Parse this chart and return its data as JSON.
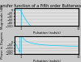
{
  "title": "Transfer function of a Fifth order Butterworth filter",
  "fig_bg": "#c8c8c8",
  "ax_bg": "#e0e0e0",
  "line_color": "#00ccff",
  "grid_color": "#aaaaaa",
  "freq_range": [
    0,
    10
  ],
  "mag_ylim": [
    -100,
    10
  ],
  "mag_yticks": [
    -100,
    -80,
    -60,
    -40,
    -20,
    0
  ],
  "mag_ylabel": "Magnitude (dB)",
  "phase_ylim": [
    -200,
    100
  ],
  "phase_yticks": [
    -200,
    -150,
    -100,
    -50,
    0
  ],
  "phase_ylabel": "Phase in Degrees",
  "xlabel": "Pulsation (rads/s)",
  "cutoff": 1.0,
  "order": 5,
  "xmax": 10,
  "title_fontsize": 3.5,
  "label_fontsize": 2.8,
  "tick_fontsize": 2.5
}
